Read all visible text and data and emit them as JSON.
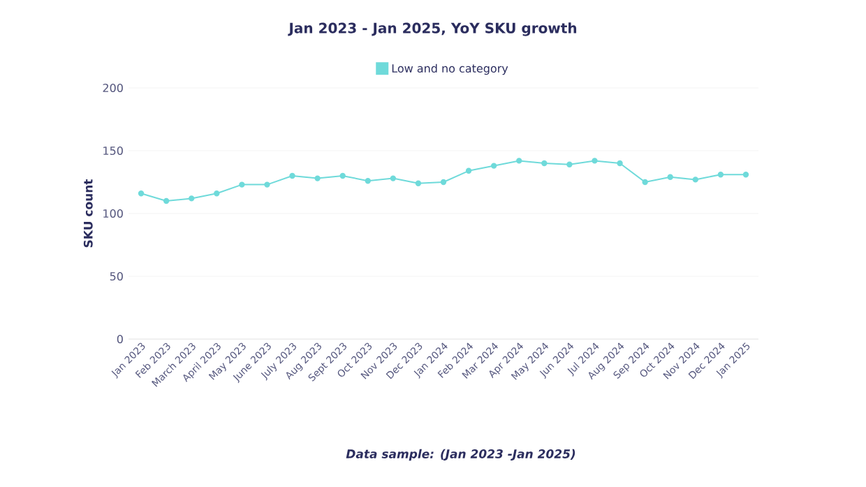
{
  "chart_data": {
    "type": "line",
    "title": "Jan 2023 - Jan 2025, YoY SKU growth",
    "ylabel": "SKU count",
    "categories": [
      "Jan 2023",
      "Feb 2023",
      "March 2023",
      "April 2023",
      "May 2023",
      "June 2023",
      "July 2023",
      "Aug 2023",
      "Sept 2023",
      "Oct 2023",
      "Nov 2023",
      "Dec 2023",
      "Jan 2024",
      "Feb 2024",
      "Mar 2024",
      "Apr 2024",
      "May 2024",
      "Jun 2024",
      "Jul 2024",
      "Aug 2024",
      "Sep 2024",
      "Oct 2024",
      "Nov 2024",
      "Dec 2024",
      "Jan 2025"
    ],
    "series": [
      {
        "name": "Low and no category",
        "color": "#6fdada",
        "values": [
          116,
          110,
          112,
          116,
          123,
          123,
          130,
          128,
          130,
          126,
          128,
          124,
          125,
          134,
          138,
          142,
          140,
          139,
          142,
          140,
          125,
          129,
          127,
          131,
          131
        ]
      }
    ],
    "ylim": [
      0,
      200
    ],
    "yticks": [
      0,
      50,
      100,
      150,
      200
    ],
    "grid": "y",
    "legend": "top",
    "marker": "circle",
    "line_style": "solid",
    "annotations": [
      "Data sample: (Jan 2023 -Jan 2025)"
    ]
  }
}
